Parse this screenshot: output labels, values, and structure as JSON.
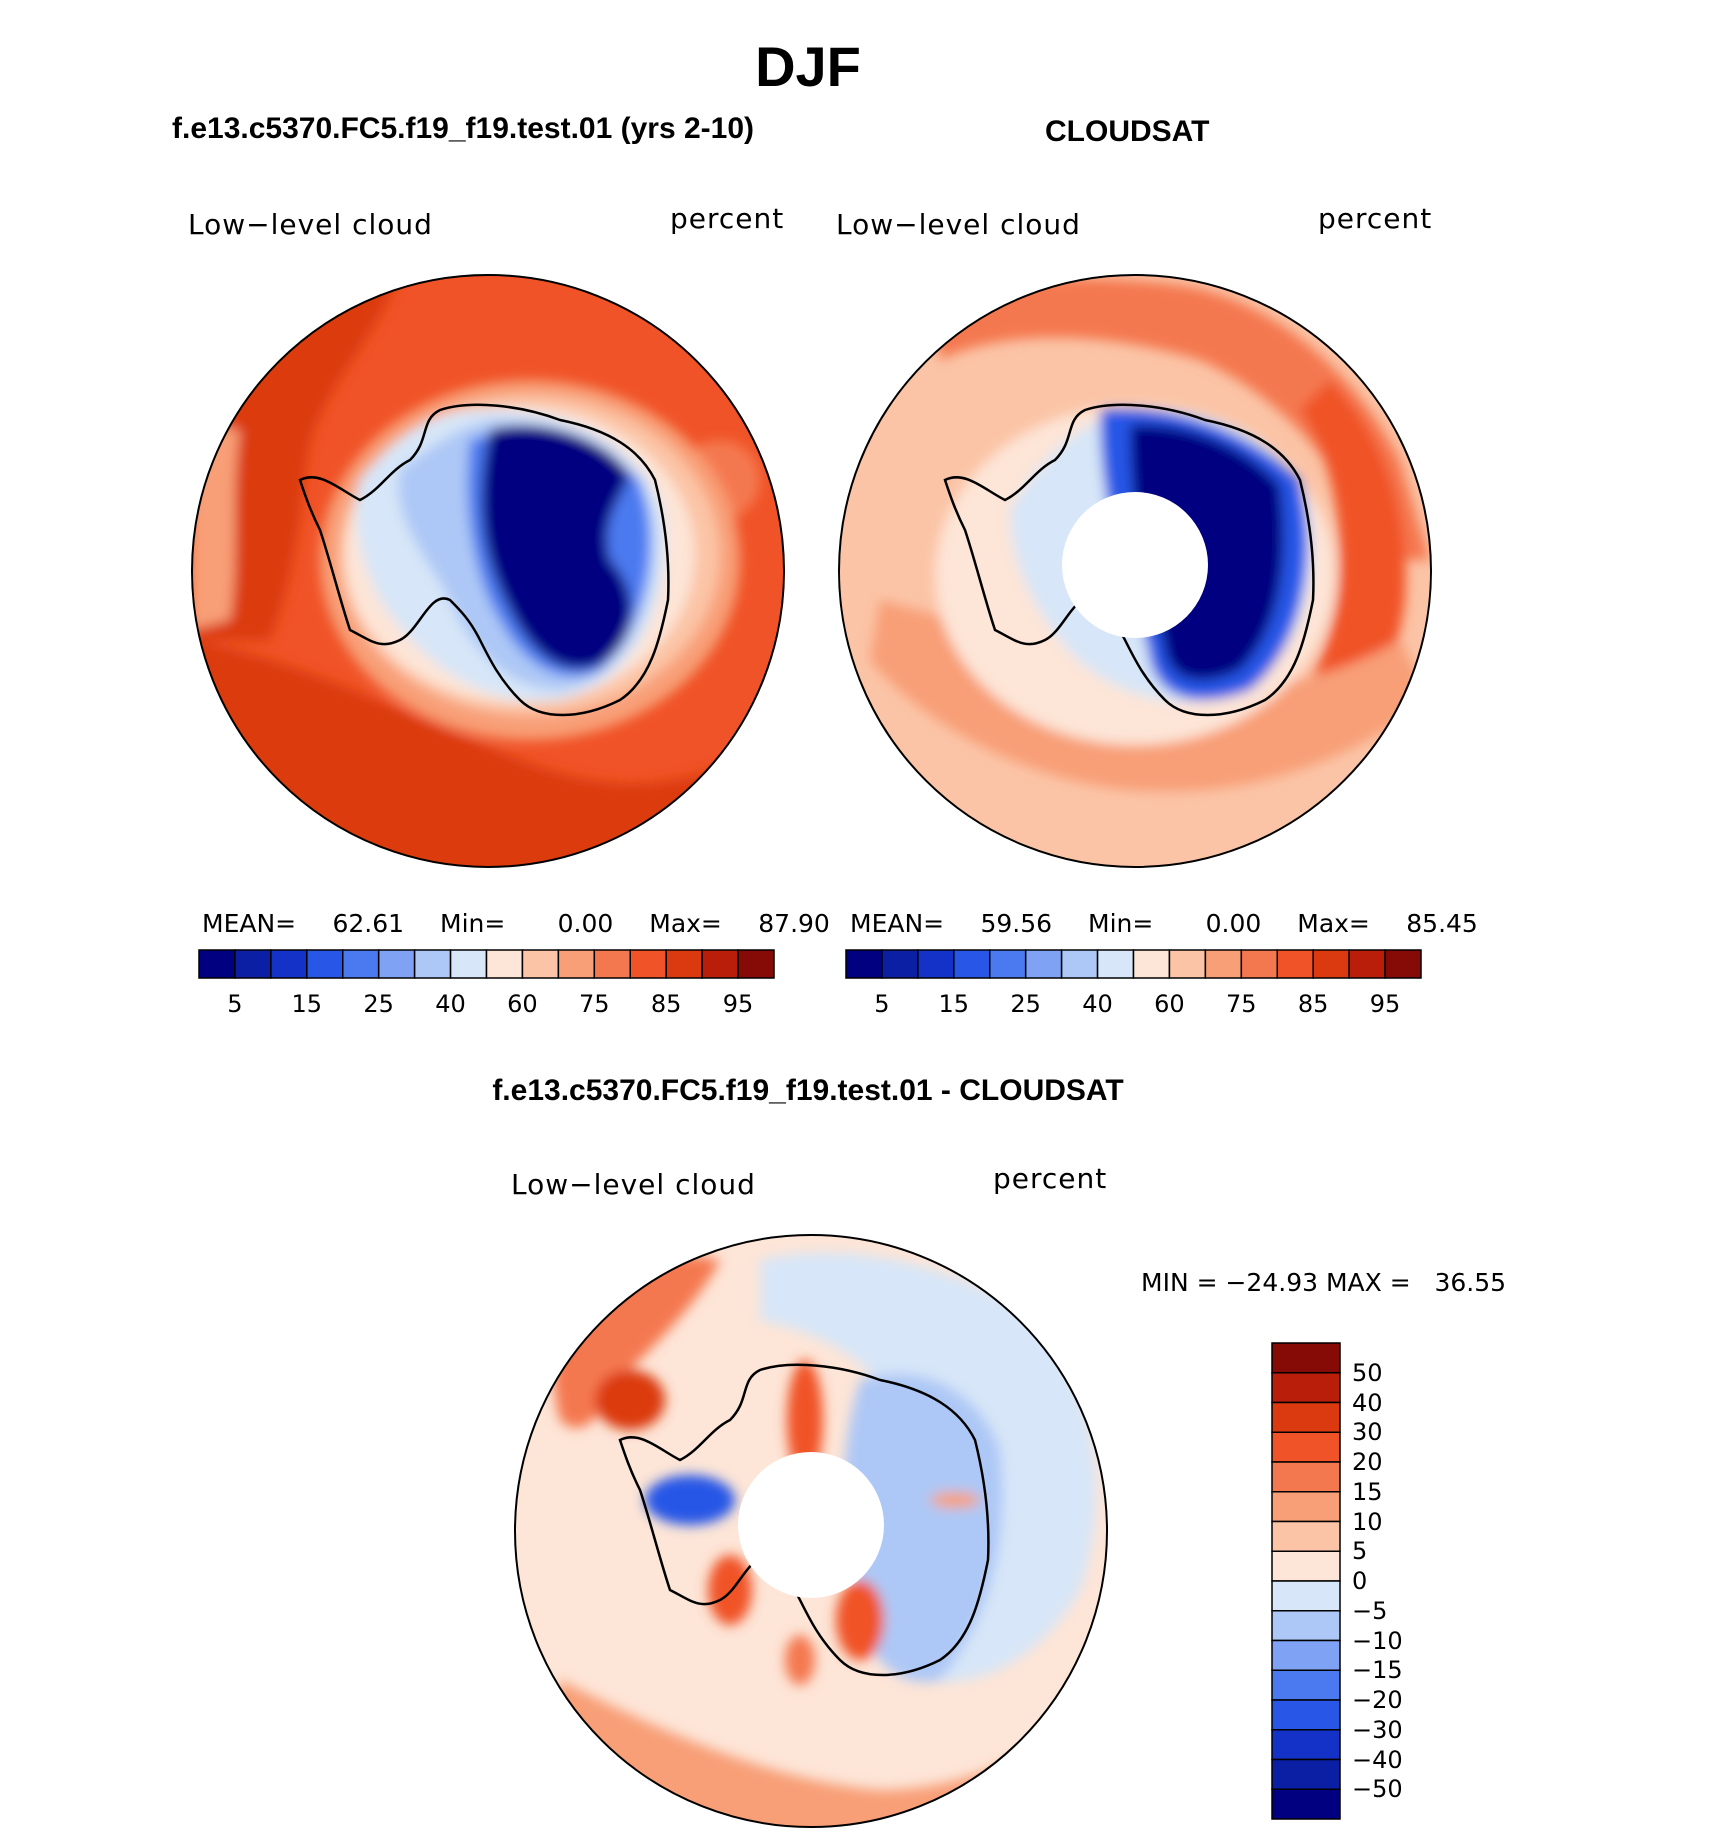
{
  "figure": {
    "main_title": "DJF",
    "colors": {
      "seq": [
        "#000080",
        "#0a1fa3",
        "#1432c8",
        "#2856e6",
        "#4b7af0",
        "#7fa2f4",
        "#adc8f6",
        "#d7e6f8",
        "#fde5d7",
        "#fbc4a6",
        "#f89f77",
        "#f4784f",
        "#f05327",
        "#db3a11",
        "#b81e0a",
        "#860a05"
      ],
      "diff": [
        "#000080",
        "#0a1fa3",
        "#1432c8",
        "#2856e6",
        "#4b7af0",
        "#7fa2f4",
        "#adc8f6",
        "#d7e6f8",
        "#fde5d7",
        "#fbc4a6",
        "#f89f77",
        "#f4784f",
        "#f05327",
        "#db3a11",
        "#b81e0a",
        "#860a05"
      ],
      "coast": "#000000"
    }
  },
  "panels": {
    "model": {
      "title": "f.e13.c5370.FC5.f19_f19.test.01 (yrs 2-10)",
      "variable": "Low−level cloud",
      "units": "percent",
      "mean_label": "MEAN=",
      "mean": "62.61",
      "min_label": "Min=",
      "min": "0.00",
      "max_label": "Max=",
      "max": "87.90",
      "colorbar_ticks": [
        "5",
        "15",
        "25",
        "40",
        "60",
        "75",
        "85",
        "95"
      ]
    },
    "obs": {
      "title": "CLOUDSAT",
      "variable": "Low−level cloud",
      "units": "percent",
      "mean_label": "MEAN=",
      "mean": "59.56",
      "min_label": "Min=",
      "min": "0.00",
      "max_label": "Max=",
      "max": "85.45",
      "colorbar_ticks": [
        "5",
        "15",
        "25",
        "40",
        "60",
        "75",
        "85",
        "95"
      ]
    },
    "diff": {
      "title": "f.e13.c5370.FC5.f19_f19.test.01 - CLOUDSAT",
      "variable": "Low−level cloud",
      "units": "percent",
      "minmax_text": "MIN = −24.93 MAX =   36.55",
      "colorbar_ticks": [
        "50",
        "40",
        "30",
        "20",
        "15",
        "10",
        "5",
        "0",
        "−5",
        "−10",
        "−15",
        "−20",
        "−30",
        "−40",
        "−50"
      ]
    }
  }
}
